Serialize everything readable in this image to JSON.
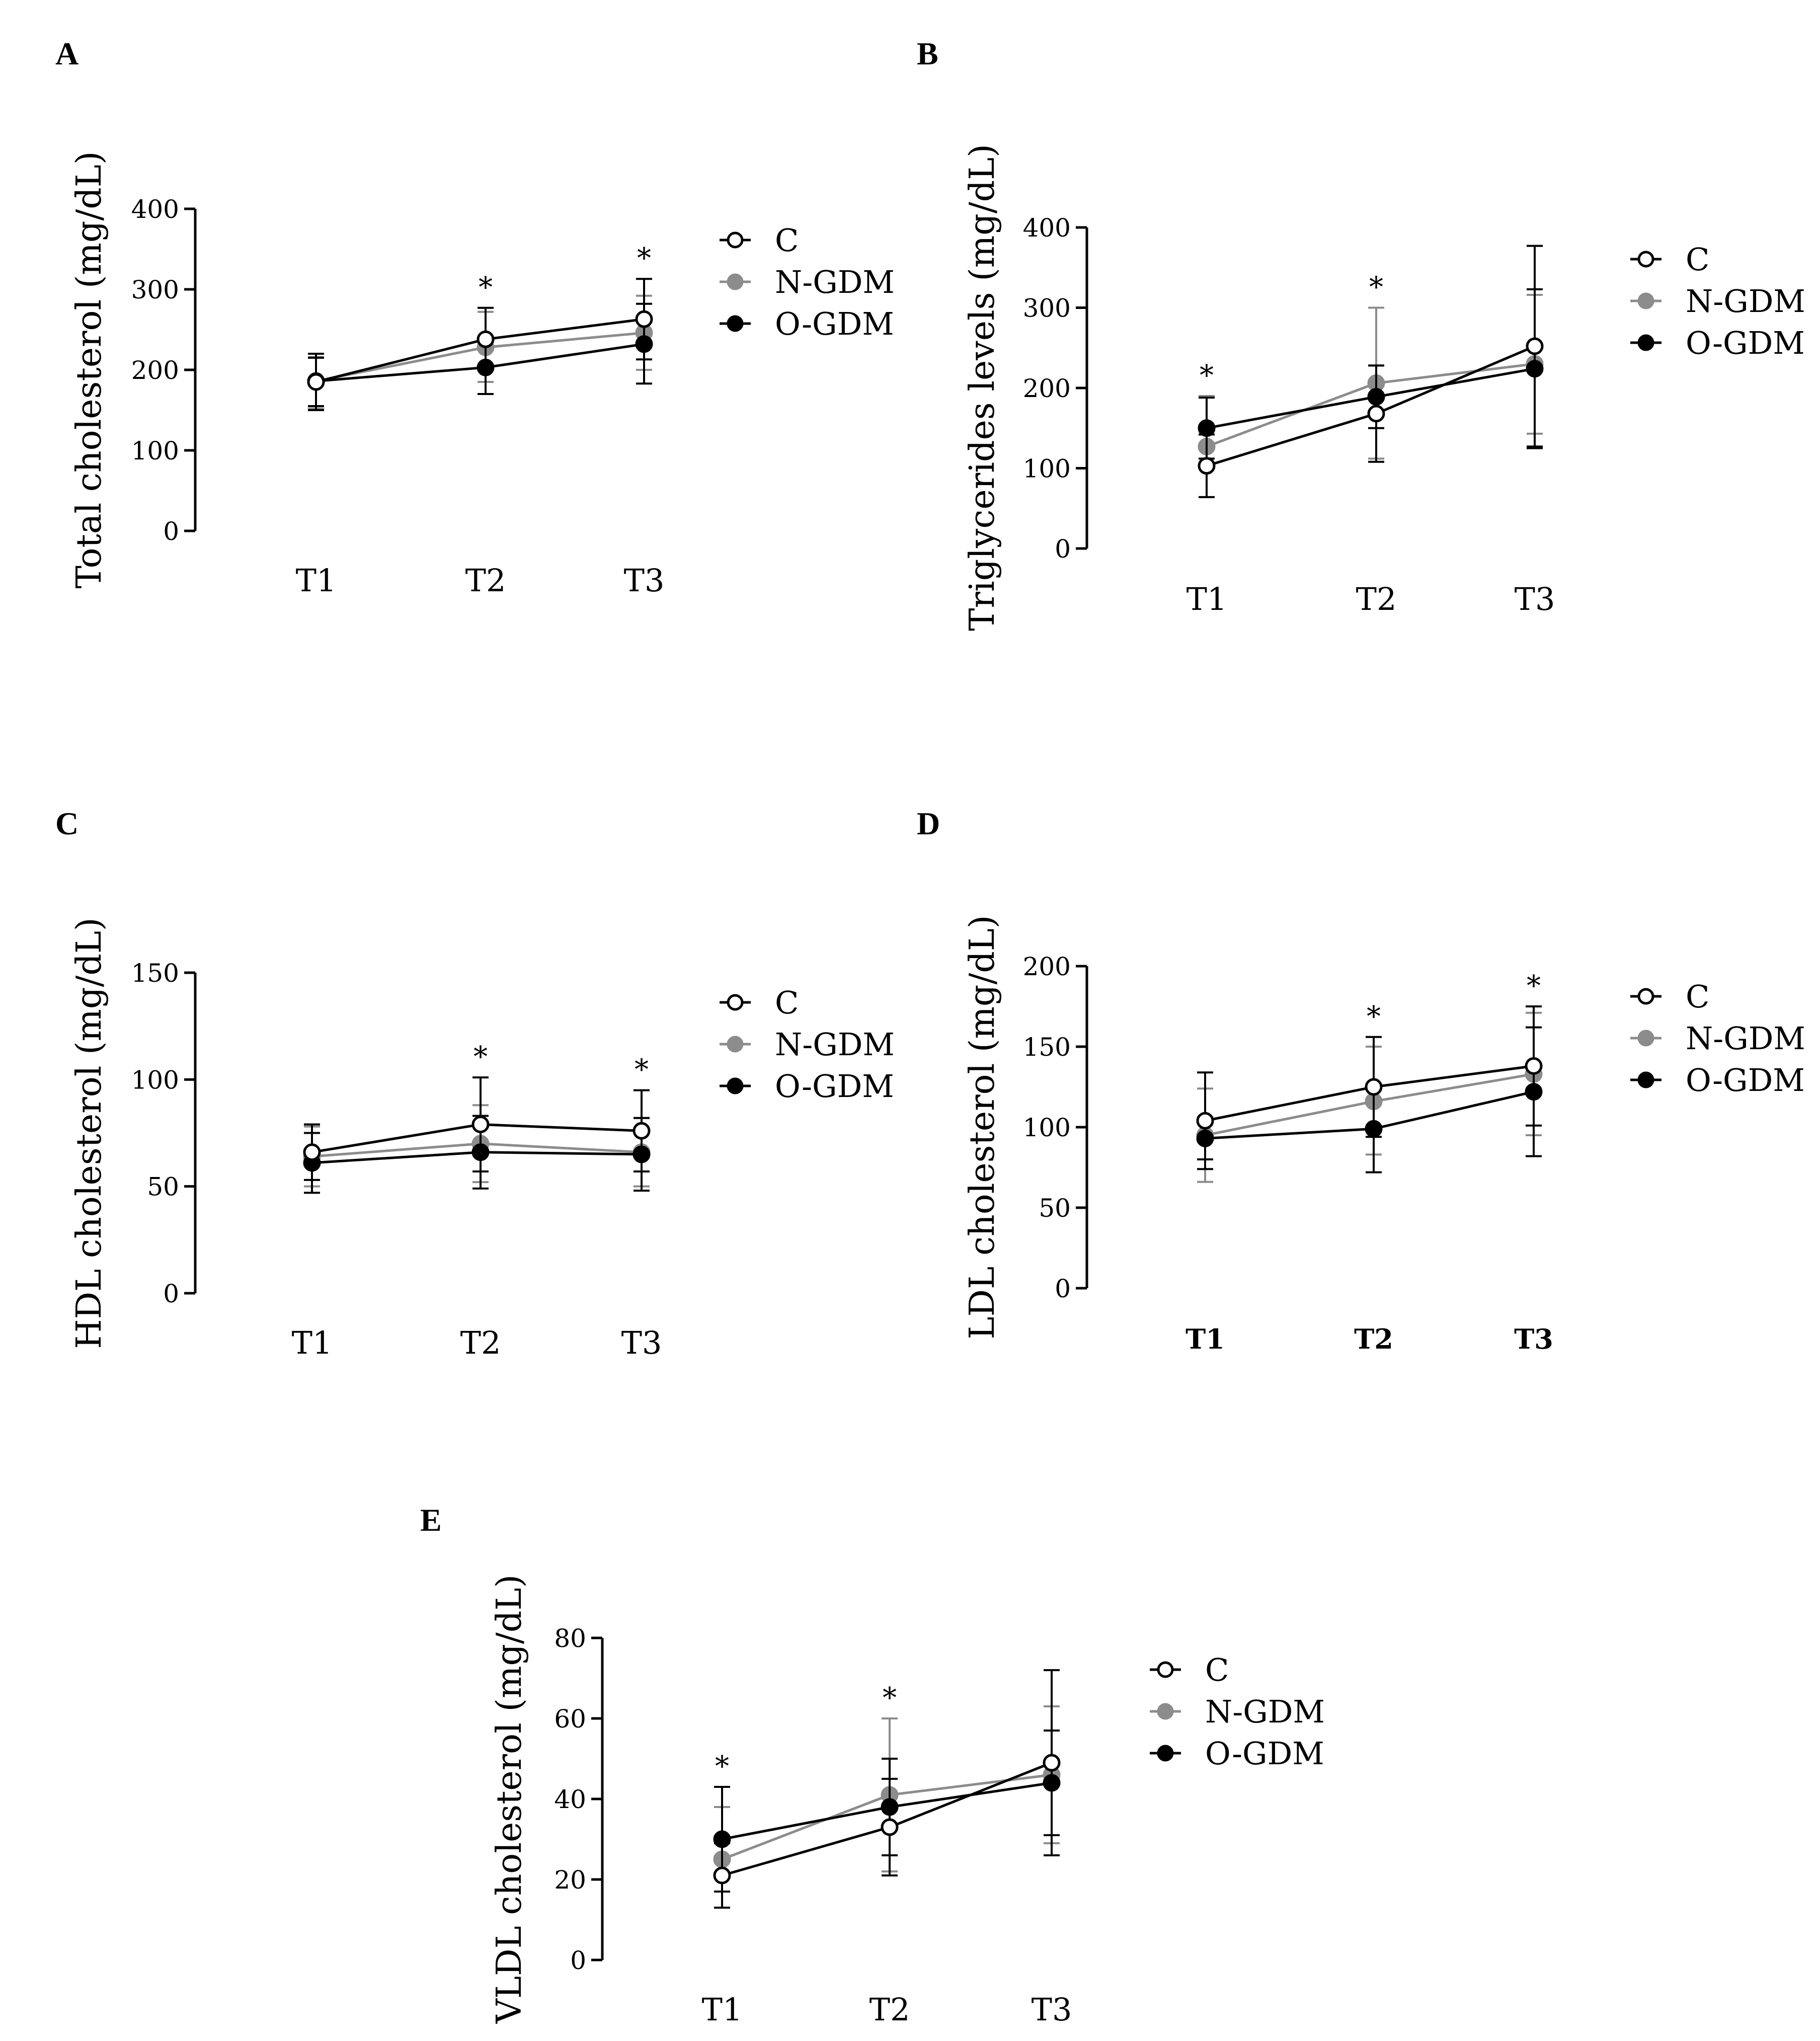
{
  "colors": {
    "C": "#000000",
    "N-GDM": "#8c8c8c",
    "O-GDM": "#000000"
  },
  "legend_labels": [
    "C",
    "N-GDM",
    "O-GDM"
  ],
  "chart_data": [
    {
      "panel": "A",
      "type": "line",
      "ylabel": "Total cholesterol (mg/dL)",
      "categories": [
        "T1",
        "T2",
        "T3"
      ],
      "ylim": [
        0,
        400
      ],
      "yticks": [
        "0",
        "100",
        "200",
        "300",
        "400"
      ],
      "ytick_values": [
        0,
        100,
        200,
        300,
        400
      ],
      "series": [
        {
          "name": "C",
          "values": [
            185,
            238,
            263
          ],
          "err": [
            [
              150,
              220
            ],
            [
              200,
              277
            ],
            [
              213,
              313
            ]
          ]
        },
        {
          "name": "N-GDM",
          "values": [
            186,
            228,
            246
          ],
          "err": [
            [
              152,
              216
            ],
            [
              185,
              272
            ],
            [
              200,
              292
            ]
          ]
        },
        {
          "name": "O-GDM",
          "values": [
            186,
            203,
            232
          ],
          "err": [
            [
              155,
              215
            ],
            [
              170,
              237
            ],
            [
              183,
              282
            ]
          ]
        }
      ],
      "significance": [
        "",
        "*",
        "*"
      ],
      "legend_position": "right"
    },
    {
      "panel": "B",
      "type": "line",
      "ylabel": "Triglycerides levels (mg/dL)",
      "categories": [
        "T1",
        "T2",
        "T3"
      ],
      "ylim": [
        0,
        400
      ],
      "yticks": [
        "0",
        "100",
        "200",
        "300",
        "400"
      ],
      "ytick_values": [
        0,
        100,
        200,
        300,
        400
      ],
      "series": [
        {
          "name": "C",
          "values": [
            103,
            168,
            252
          ],
          "err": [
            [
              64,
              142
            ],
            [
              108,
              228
            ],
            [
              127,
              377
            ]
          ]
        },
        {
          "name": "N-GDM",
          "values": [
            127,
            206,
            230
          ],
          "err": [
            [
              64,
              190
            ],
            [
              112,
              300
            ],
            [
              143,
              316
            ]
          ]
        },
        {
          "name": "O-GDM",
          "values": [
            150,
            189,
            224
          ],
          "err": [
            [
              112,
              188
            ],
            [
              150,
              228
            ],
            [
              125,
              323
            ]
          ]
        }
      ],
      "significance": [
        "*",
        "*",
        ""
      ],
      "legend_position": "right"
    },
    {
      "panel": "C",
      "type": "line",
      "ylabel": "HDL cholesterol (mg/dL)",
      "categories": [
        "T1",
        "T2",
        "T3"
      ],
      "ylim": [
        0,
        150
      ],
      "yticks": [
        "0",
        "50",
        "100",
        "150"
      ],
      "ytick_values": [
        0,
        50,
        100,
        150
      ],
      "series": [
        {
          "name": "C",
          "values": [
            66,
            79,
            76
          ],
          "err": [
            [
              53,
              79
            ],
            [
              57,
              101
            ],
            [
              57,
              95
            ]
          ]
        },
        {
          "name": "N-GDM",
          "values": [
            64,
            70,
            66
          ],
          "err": [
            [
              50,
              78
            ],
            [
              52,
              88
            ],
            [
              50,
              82
            ]
          ]
        },
        {
          "name": "O-GDM",
          "values": [
            61,
            66,
            65
          ],
          "err": [
            [
              47,
              75
            ],
            [
              49,
              83
            ],
            [
              48,
              82
            ]
          ]
        }
      ],
      "significance": [
        "",
        "*",
        "*"
      ],
      "legend_position": "right"
    },
    {
      "panel": "D",
      "type": "line",
      "ylabel": "LDL cholesterol (mg/dL)",
      "categories": [
        "T1",
        "T2",
        "T3"
      ],
      "ylim": [
        0,
        200
      ],
      "yticks": [
        "0",
        "50",
        "100",
        "150",
        "200"
      ],
      "ytick_values": [
        0,
        50,
        100,
        150,
        200
      ],
      "bold_categories": true,
      "series": [
        {
          "name": "C",
          "values": [
            104,
            125,
            138
          ],
          "err": [
            [
              74,
              134
            ],
            [
              94,
              156
            ],
            [
              101,
              175
            ]
          ]
        },
        {
          "name": "N-GDM",
          "values": [
            95,
            116,
            133
          ],
          "err": [
            [
              66,
              124
            ],
            [
              83,
              150
            ],
            [
              95,
              171
            ]
          ]
        },
        {
          "name": "O-GDM",
          "values": [
            93,
            99,
            122
          ],
          "err": [
            [
              80,
              106
            ],
            [
              72,
              126
            ],
            [
              82,
              162
            ]
          ]
        }
      ],
      "significance": [
        "",
        "*",
        "*"
      ],
      "legend_position": "right"
    },
    {
      "panel": "E",
      "type": "line",
      "ylabel": "VLDL cholesterol (mg/dL)",
      "categories": [
        "T1",
        "T2",
        "T3"
      ],
      "ylim": [
        0,
        80
      ],
      "yticks": [
        "0",
        "20",
        "40",
        "60",
        "80"
      ],
      "ytick_values": [
        0,
        20,
        40,
        60,
        80
      ],
      "series": [
        {
          "name": "C",
          "values": [
            21,
            33,
            49
          ],
          "err": [
            [
              13,
              29
            ],
            [
              21,
              45
            ],
            [
              26,
              72
            ]
          ]
        },
        {
          "name": "N-GDM",
          "values": [
            25,
            41,
            46
          ],
          "err": [
            [
              13,
              38
            ],
            [
              22,
              60
            ],
            [
              29,
              63
            ]
          ]
        },
        {
          "name": "O-GDM",
          "values": [
            30,
            38,
            44
          ],
          "err": [
            [
              17,
              43
            ],
            [
              26,
              50
            ],
            [
              31,
              57
            ]
          ]
        }
      ],
      "significance": [
        "*",
        "*",
        ""
      ],
      "legend_position": "right"
    }
  ]
}
